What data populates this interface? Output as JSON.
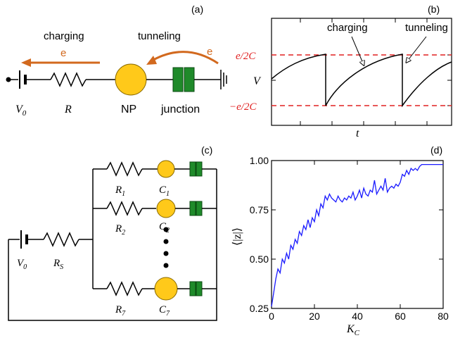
{
  "panel_a": {
    "label": "(a)",
    "charging": "charging",
    "tunneling": "tunneling",
    "electron_left": "e",
    "electron_right": "e",
    "v0": "V",
    "v0_sub": "0",
    "r": "R",
    "np": "NP",
    "junction": "junction",
    "colors": {
      "np_fill": "#ffc91a",
      "junction_fill": "#1f8a2a",
      "arrow": "#d2691e"
    }
  },
  "panel_b": {
    "label": "(b)",
    "charging": "charging",
    "tunneling": "tunneling",
    "top_level": "e/2C",
    "bottom_level": "−e/2C",
    "y_label": "V",
    "x_label": "t",
    "colors": {
      "dashed": "#e02020",
      "curve": "#000000"
    }
  },
  "panel_c": {
    "label": "(c)",
    "v0": "V",
    "v0_sub": "0",
    "rs": "R",
    "rs_sub": "S",
    "branches": [
      {
        "r": "R",
        "r_sub": "1",
        "c": "C",
        "c_sub": "1"
      },
      {
        "r": "R",
        "r_sub": "2",
        "c": "C",
        "c_sub": "2"
      },
      {
        "r": "R",
        "r_sub": "7",
        "c": "C",
        "c_sub": "7"
      }
    ]
  },
  "panel_d": {
    "label": "(d)",
    "chart_data": {
      "type": "line",
      "xlabel": "K",
      "xlabel_sub": "C",
      "ylabel": "⟨|z|⟩",
      "xlim": [
        0,
        80
      ],
      "ylim": [
        0.25,
        1.0
      ],
      "xticks": [
        "0",
        "20",
        "40",
        "60",
        "80"
      ],
      "yticks": [
        "0.25",
        "0.50",
        "0.75",
        "1.00"
      ],
      "line_color": "#1a1aff",
      "x": [
        0,
        1,
        2,
        3,
        4,
        5,
        6,
        7,
        8,
        9,
        10,
        11,
        12,
        13,
        14,
        15,
        16,
        17,
        18,
        19,
        20,
        21,
        22,
        23,
        24,
        25,
        26,
        27,
        28,
        29,
        30,
        31,
        32,
        33,
        34,
        35,
        36,
        37,
        38,
        39,
        40,
        41,
        42,
        43,
        44,
        45,
        46,
        47,
        48,
        49,
        50,
        51,
        52,
        53,
        54,
        55,
        56,
        57,
        58,
        59,
        60,
        61,
        62,
        63,
        64,
        65,
        66,
        67,
        68,
        69,
        70,
        72,
        74,
        76,
        78,
        80
      ],
      "y": [
        0.26,
        0.33,
        0.4,
        0.45,
        0.43,
        0.5,
        0.48,
        0.53,
        0.5,
        0.57,
        0.55,
        0.6,
        0.58,
        0.64,
        0.62,
        0.67,
        0.65,
        0.7,
        0.66,
        0.71,
        0.69,
        0.75,
        0.72,
        0.78,
        0.76,
        0.82,
        0.8,
        0.83,
        0.81,
        0.8,
        0.79,
        0.82,
        0.8,
        0.79,
        0.81,
        0.8,
        0.82,
        0.81,
        0.84,
        0.8,
        0.82,
        0.85,
        0.81,
        0.86,
        0.83,
        0.82,
        0.85,
        0.84,
        0.9,
        0.83,
        0.85,
        0.87,
        0.85,
        0.91,
        0.84,
        0.86,
        0.87,
        0.86,
        0.88,
        0.87,
        0.89,
        0.93,
        0.92,
        0.95,
        0.93,
        0.96,
        0.95,
        0.96,
        0.95,
        0.97,
        0.98,
        0.98,
        0.98,
        0.98,
        0.98,
        0.98
      ]
    }
  }
}
